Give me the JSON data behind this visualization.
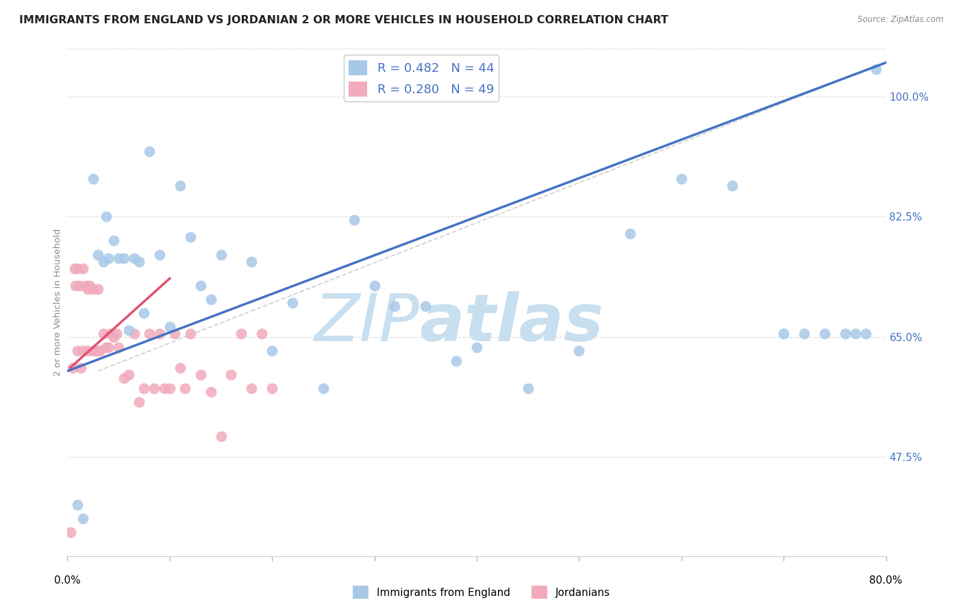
{
  "title": "IMMIGRANTS FROM ENGLAND VS JORDANIAN 2 OR MORE VEHICLES IN HOUSEHOLD CORRELATION CHART",
  "source": "Source: ZipAtlas.com",
  "ylabel": "2 or more Vehicles in Household",
  "y_ticks": [
    47.5,
    65.0,
    82.5,
    100.0
  ],
  "y_tick_labels": [
    "47.5%",
    "65.0%",
    "82.5%",
    "100.0%"
  ],
  "xlim": [
    0.0,
    80.0
  ],
  "ylim": [
    33.0,
    107.0
  ],
  "legend_labels": [
    "Immigrants from England",
    "Jordanians"
  ],
  "r_n_blue": {
    "r": 0.482,
    "n": 44
  },
  "r_n_pink": {
    "r": 0.28,
    "n": 49
  },
  "blue_scatter_color": "#a8c8e8",
  "pink_scatter_color": "#f0aabb",
  "blue_line_color": "#4472c4",
  "pink_line_color": "#e05070",
  "ref_line_color": "#cccccc",
  "watermark_zip": "ZIP",
  "watermark_atlas": "atlas",
  "watermark_color_zip": "#c8dff0",
  "watermark_color_atlas": "#c8dff0",
  "background_color": "#ffffff",
  "grid_color": "#dddddd",
  "title_color": "#222222",
  "axis_tick_color": "#4472c4",
  "ylabel_color": "#888888",
  "title_fontsize": 11.5,
  "eng_x": [
    1.0,
    1.5,
    2.5,
    3.0,
    3.5,
    3.8,
    4.0,
    4.5,
    5.0,
    5.5,
    6.0,
    6.5,
    7.0,
    7.5,
    8.0,
    9.0,
    10.0,
    11.0,
    12.0,
    13.0,
    14.0,
    15.0,
    18.0,
    20.0,
    22.0,
    25.0,
    28.0,
    30.0,
    32.0,
    35.0,
    38.0,
    40.0,
    45.0,
    50.0,
    55.0,
    60.0,
    65.0,
    70.0,
    72.0,
    74.0,
    76.0,
    77.0,
    78.0,
    79.0
  ],
  "eng_y": [
    40.5,
    38.5,
    88.0,
    77.0,
    76.0,
    82.5,
    76.5,
    79.0,
    76.5,
    76.5,
    66.0,
    76.5,
    76.0,
    68.5,
    92.0,
    77.0,
    66.5,
    87.0,
    79.5,
    72.5,
    70.5,
    77.0,
    76.0,
    63.0,
    70.0,
    57.5,
    82.0,
    72.5,
    69.5,
    69.5,
    61.5,
    63.5,
    57.5,
    63.0,
    80.0,
    88.0,
    87.0,
    65.5,
    65.5,
    65.5,
    65.5,
    65.5,
    65.5,
    104.0
  ],
  "jor_x": [
    0.3,
    0.5,
    0.7,
    0.8,
    1.0,
    1.0,
    1.2,
    1.3,
    1.5,
    1.5,
    1.8,
    2.0,
    2.0,
    2.2,
    2.5,
    2.5,
    2.8,
    3.0,
    3.0,
    3.2,
    3.5,
    3.8,
    4.0,
    4.2,
    4.5,
    4.8,
    5.0,
    5.5,
    6.0,
    6.5,
    7.0,
    7.5,
    8.0,
    8.5,
    9.0,
    9.5,
    10.0,
    10.5,
    11.0,
    11.5,
    12.0,
    13.0,
    14.0,
    15.0,
    16.0,
    17.0,
    18.0,
    19.0,
    20.0
  ],
  "jor_y": [
    36.5,
    60.5,
    75.0,
    72.5,
    75.0,
    63.0,
    72.5,
    60.5,
    75.0,
    63.0,
    72.5,
    72.0,
    63.0,
    72.5,
    72.0,
    63.0,
    63.0,
    72.0,
    63.0,
    63.0,
    65.5,
    63.5,
    63.5,
    65.5,
    65.0,
    65.5,
    63.5,
    59.0,
    59.5,
    65.5,
    55.5,
    57.5,
    65.5,
    57.5,
    65.5,
    57.5,
    57.5,
    65.5,
    60.5,
    57.5,
    65.5,
    59.5,
    57.0,
    50.5,
    59.5,
    65.5,
    57.5,
    65.5,
    57.5
  ],
  "blue_line_x0": 0.0,
  "blue_line_y0": 60.0,
  "blue_line_x1": 80.0,
  "blue_line_y1": 105.0,
  "pink_line_x0": 0.3,
  "pink_line_y0": 60.5,
  "pink_line_x1": 10.0,
  "pink_line_y1": 73.5,
  "ref_line_x0": 3.0,
  "ref_line_y0": 60.0,
  "ref_line_x1": 80.0,
  "ref_line_y1": 105.0
}
